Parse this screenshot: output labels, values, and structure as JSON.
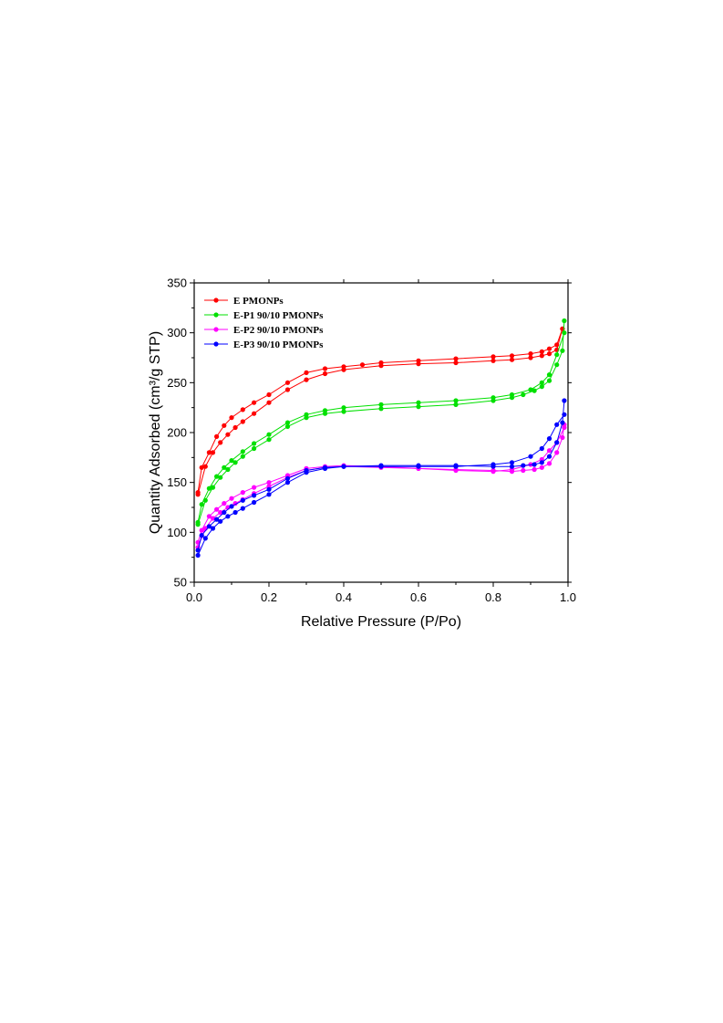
{
  "chart_data": {
    "type": "line",
    "xlabel": "Relative Pressure (P/Po)",
    "ylabel": "Quantity Adsorbed (cm³/g STP)",
    "xlim": [
      0.0,
      1.0
    ],
    "ylim": [
      50,
      350
    ],
    "xticks": [
      "0.0",
      "0.2",
      "0.4",
      "0.6",
      "0.8",
      "1.0"
    ],
    "yticks": [
      "50",
      "100",
      "150",
      "200",
      "250",
      "300",
      "350"
    ],
    "grid": false,
    "legend_position": "top-left",
    "series": [
      {
        "name": "E PMONPs",
        "color": "#ff0000",
        "adsorption": {
          "x": [
            0.01,
            0.03,
            0.05,
            0.07,
            0.09,
            0.11,
            0.13,
            0.16,
            0.2,
            0.25,
            0.3,
            0.35,
            0.4,
            0.5,
            0.6,
            0.7,
            0.8,
            0.85,
            0.9,
            0.93,
            0.95,
            0.97,
            0.985
          ],
          "y": [
            138,
            166,
            180,
            190,
            198,
            205,
            211,
            219,
            230,
            243,
            253,
            259,
            263,
            267,
            269,
            270,
            272,
            273,
            275,
            277,
            279,
            283,
            304
          ]
        },
        "desorption": {
          "x": [
            0.985,
            0.97,
            0.95,
            0.93,
            0.9,
            0.85,
            0.8,
            0.7,
            0.6,
            0.5,
            0.45,
            0.4,
            0.35,
            0.3,
            0.25,
            0.2,
            0.16,
            0.13,
            0.1,
            0.08,
            0.06,
            0.04,
            0.02,
            0.01
          ],
          "y": [
            304,
            288,
            284,
            281,
            279,
            277,
            276,
            274,
            272,
            270,
            268,
            266,
            264,
            260,
            250,
            238,
            230,
            223,
            215,
            207,
            196,
            180,
            165,
            140
          ]
        }
      },
      {
        "name": "E-P1 90/10 PMONPs",
        "color": "#00e000",
        "adsorption": {
          "x": [
            0.01,
            0.03,
            0.05,
            0.07,
            0.09,
            0.11,
            0.13,
            0.16,
            0.2,
            0.25,
            0.3,
            0.35,
            0.4,
            0.5,
            0.6,
            0.7,
            0.8,
            0.85,
            0.88,
            0.91,
            0.93,
            0.95,
            0.97,
            0.985,
            0.99
          ],
          "y": [
            108,
            132,
            145,
            155,
            163,
            170,
            176,
            184,
            193,
            206,
            215,
            219,
            221,
            224,
            226,
            228,
            232,
            235,
            238,
            242,
            246,
            252,
            268,
            282,
            312
          ]
        },
        "desorption": {
          "x": [
            0.99,
            0.97,
            0.95,
            0.93,
            0.9,
            0.85,
            0.8,
            0.7,
            0.6,
            0.5,
            0.4,
            0.35,
            0.3,
            0.25,
            0.2,
            0.16,
            0.13,
            0.1,
            0.08,
            0.06,
            0.04,
            0.02,
            0.01
          ],
          "y": [
            300,
            278,
            258,
            250,
            243,
            238,
            235,
            232,
            230,
            228,
            225,
            222,
            218,
            210,
            198,
            189,
            181,
            172,
            165,
            156,
            144,
            128,
            110
          ]
        }
      },
      {
        "name": "E-P2 90/10 PMONPs",
        "color": "#ff00ff",
        "adsorption": {
          "x": [
            0.01,
            0.03,
            0.05,
            0.07,
            0.09,
            0.11,
            0.13,
            0.16,
            0.2,
            0.25,
            0.3,
            0.35,
            0.4,
            0.5,
            0.6,
            0.7,
            0.8,
            0.85,
            0.88,
            0.91,
            0.93,
            0.95,
            0.97,
            0.985,
            0.99
          ],
          "y": [
            85,
            104,
            114,
            120,
            125,
            129,
            133,
            139,
            146,
            155,
            162,
            165,
            166,
            165,
            164,
            163,
            162,
            161,
            162,
            163,
            165,
            169,
            180,
            195,
            208
          ]
        },
        "desorption": {
          "x": [
            0.99,
            0.97,
            0.95,
            0.93,
            0.9,
            0.85,
            0.8,
            0.7,
            0.6,
            0.5,
            0.4,
            0.35,
            0.3,
            0.25,
            0.2,
            0.16,
            0.13,
            0.1,
            0.08,
            0.06,
            0.04,
            0.02,
            0.01
          ],
          "y": [
            205,
            190,
            182,
            173,
            168,
            163,
            161,
            162,
            164,
            166,
            167,
            166,
            164,
            157,
            150,
            145,
            140,
            134,
            129,
            123,
            116,
            102,
            90
          ]
        }
      },
      {
        "name": "E-P3 90/10 PMONPs",
        "color": "#0000ff",
        "adsorption": {
          "x": [
            0.01,
            0.03,
            0.05,
            0.07,
            0.09,
            0.11,
            0.13,
            0.16,
            0.2,
            0.25,
            0.3,
            0.35,
            0.4,
            0.5,
            0.6,
            0.7,
            0.8,
            0.85,
            0.88,
            0.91,
            0.93,
            0.95,
            0.97,
            0.985,
            0.99
          ],
          "y": [
            77,
            94,
            104,
            111,
            116,
            120,
            124,
            130,
            138,
            150,
            160,
            164,
            166,
            167,
            167,
            167,
            166,
            166,
            167,
            168,
            170,
            176,
            190,
            210,
            232
          ]
        },
        "desorption": {
          "x": [
            0.99,
            0.97,
            0.95,
            0.93,
            0.9,
            0.85,
            0.8,
            0.7,
            0.6,
            0.5,
            0.4,
            0.35,
            0.3,
            0.25,
            0.2,
            0.16,
            0.13,
            0.1,
            0.08,
            0.06,
            0.04,
            0.02,
            0.01
          ],
          "y": [
            218,
            208,
            194,
            184,
            176,
            170,
            168,
            166,
            166,
            166,
            166,
            165,
            162,
            154,
            143,
            137,
            132,
            126,
            120,
            113,
            106,
            97,
            82
          ]
        }
      }
    ]
  }
}
